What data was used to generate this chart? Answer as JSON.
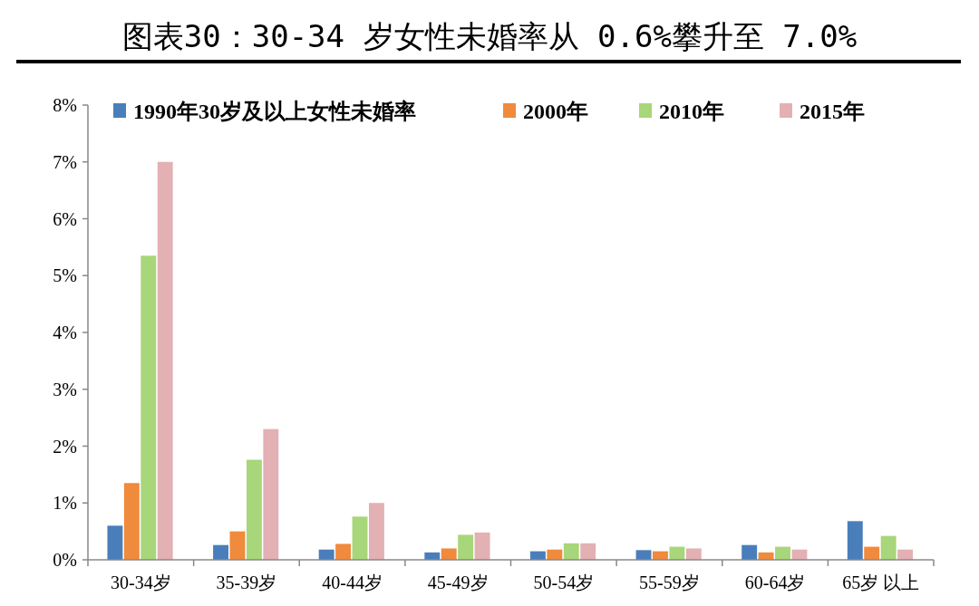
{
  "chart_data": {
    "type": "bar",
    "title": "图表30：30-34 岁女性未婚率从 0.6%攀升至 7.0%",
    "categories": [
      "30-34岁",
      "35-39岁",
      "40-44岁",
      "45-49岁",
      "50-54岁",
      "55-59岁",
      "60-64岁",
      "65岁 以上"
    ],
    "series": [
      {
        "name": "1990年30岁及以上女性未婚率",
        "color": "#4a7ebb",
        "values": [
          0.6,
          0.26,
          0.18,
          0.13,
          0.15,
          0.17,
          0.26,
          0.68
        ]
      },
      {
        "name": "2000年",
        "color": "#f08a3c",
        "values": [
          1.35,
          0.5,
          0.28,
          0.2,
          0.18,
          0.15,
          0.13,
          0.23
        ]
      },
      {
        "name": "2010年",
        "color": "#a8d67a",
        "values": [
          5.35,
          1.76,
          0.76,
          0.44,
          0.29,
          0.23,
          0.23,
          0.42
        ]
      },
      {
        "name": "2015年",
        "color": "#e3b0b4",
        "values": [
          7.0,
          2.3,
          1.0,
          0.48,
          0.29,
          0.2,
          0.18,
          0.18
        ]
      }
    ],
    "ylim": [
      0,
      8
    ],
    "yticks": [
      {
        "value": 0,
        "label": "0%"
      },
      {
        "value": 1,
        "label": "1%"
      },
      {
        "value": 2,
        "label": "2%"
      },
      {
        "value": 3,
        "label": "3%"
      },
      {
        "value": 4,
        "label": "4%"
      },
      {
        "value": 5,
        "label": "5%"
      },
      {
        "value": 6,
        "label": "6%"
      },
      {
        "value": 7,
        "label": "7%"
      },
      {
        "value": 8,
        "label": "8%"
      }
    ],
    "legend": "top",
    "grid": false
  }
}
